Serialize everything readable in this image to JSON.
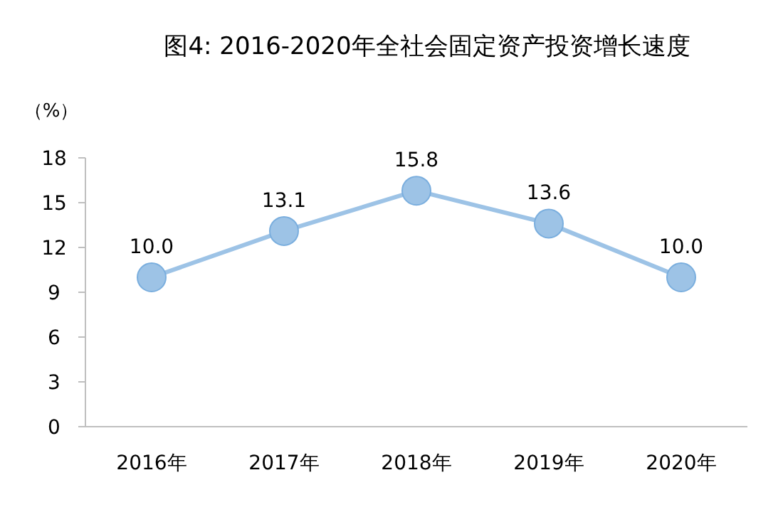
{
  "chart_data": {
    "type": "line",
    "title": "图4: 2016-2020年全社会固定资产投资增长速度",
    "ylabel": "（%）",
    "categories": [
      "2016年",
      "2017年",
      "2018年",
      "2019年",
      "2020年"
    ],
    "series": [
      {
        "color": "#9dc3e6",
        "values": [
          10.0,
          13.1,
          15.8,
          13.6,
          10.0
        ],
        "value_labels": [
          "10.0",
          "13.1",
          "15.8",
          "13.6",
          "10.0"
        ]
      }
    ],
    "ylim": [
      0,
      18
    ],
    "yticks": [
      0,
      3,
      6,
      9,
      12,
      15,
      18
    ],
    "marker": "circle",
    "line_style": "solid",
    "grid": false
  }
}
